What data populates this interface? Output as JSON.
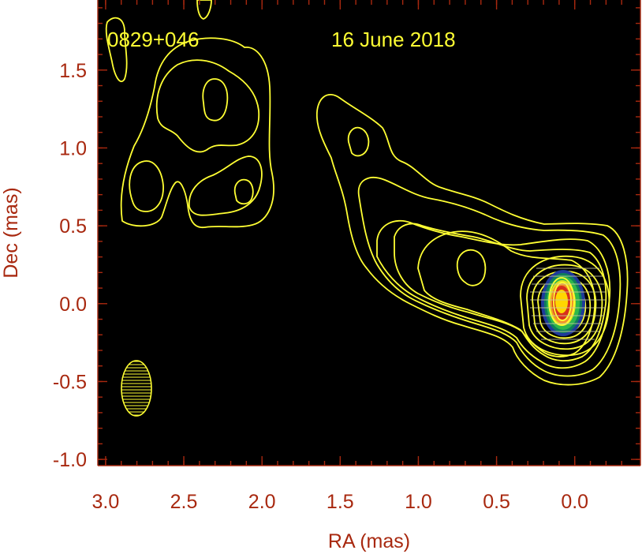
{
  "chart_data": {
    "type": "contour",
    "source_label": "0829+046",
    "date": "16 June 2018",
    "xlabel": "RA (mas)",
    "ylabel": "Dec (mas)",
    "xlim": [
      3.05,
      -0.42
    ],
    "ylim": [
      -1.04,
      1.95
    ],
    "x_ticks": [
      3.0,
      2.5,
      2.0,
      1.5,
      1.0,
      0.5,
      0.0
    ],
    "x_tick_labels": [
      "3.0",
      "2.5",
      "2.0",
      "1.5",
      "1.0",
      "0.5",
      "0.0"
    ],
    "y_ticks": [
      1.5,
      1.0,
      0.5,
      0.0,
      -0.5,
      -1.0
    ],
    "y_tick_labels": [
      "1.5",
      "1.0",
      "0.5",
      "0.0",
      "-0.5",
      "-1.0"
    ],
    "background_color": "#000000",
    "contour_color": "#ffff33",
    "axis_color": "#a8280f",
    "core": {
      "ra": 0.0,
      "dec": 0.0
    },
    "beam": {
      "ra": 2.8,
      "dec": -0.55
    },
    "colorscale": [
      "#1f3a9a",
      "#0e7f5a",
      "#2fb84a",
      "#e0e020",
      "#f2932a",
      "#d8301c",
      "#ffd700"
    ]
  }
}
